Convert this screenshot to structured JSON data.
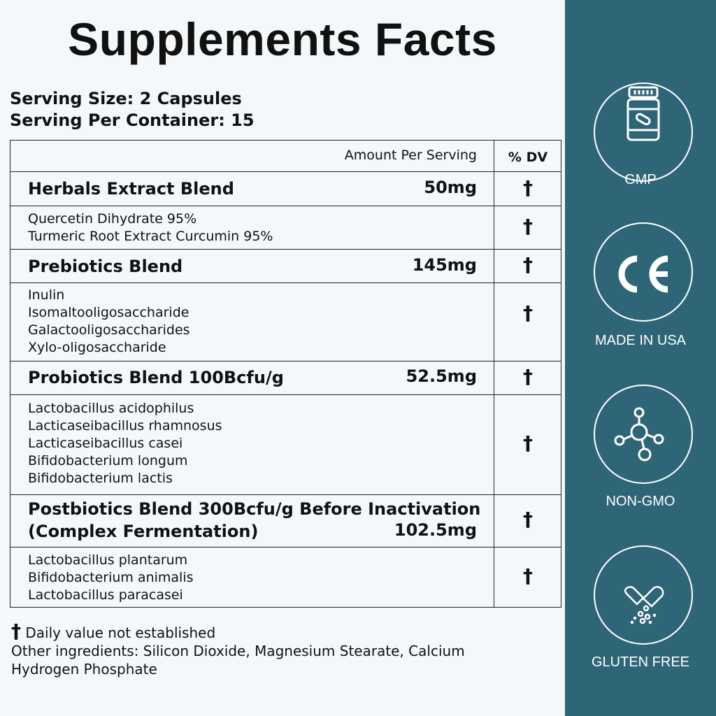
{
  "title": "Supplements Facts",
  "serving_size": "Serving Size: 2 Capsules",
  "servings_per_container": "Serving Per Container: 15",
  "table": {
    "header_amount": "Amount Per Serving",
    "header_dv": "% DV",
    "dagger": "†",
    "blends": [
      {
        "name": "Herbals Extract Blend",
        "amount": "50mg",
        "ingredients": [
          "Quercetin Dihydrate 95%",
          "Turmeric Root Extract Curcumin 95%"
        ]
      },
      {
        "name": "Prebiotics Blend",
        "amount": "145mg",
        "ingredients": [
          "Inulin",
          "Isomaltooligosaccharide",
          "Galactooligosaccharides",
          "Xylo-oligosaccharide"
        ]
      },
      {
        "name": "Probiotics Blend 100Bcfu/g",
        "amount": "52.5mg",
        "ingredients": [
          "Lactobacillus acidophilus",
          "Lacticaseibacillus rhamnosus",
          "Lacticaseibacillus casei",
          "Bifidobacterium longum",
          "Bifidobacterium lactis"
        ]
      },
      {
        "name": "Postbiotics Blend 300Bcfu/g Before Inactivation",
        "name2": "(Complex Fermentation)",
        "amount": "102.5mg",
        "ingredients": [
          "Lactobacillus plantarum",
          "Bifidobacterium animalis",
          "Lactobacillus paracasei"
        ]
      }
    ]
  },
  "footnote": "Daily value not established",
  "other_ingredients": "Other ingredients: Silicon Dioxide, Magnesium Stearate, Calcium Hydrogen Phosphate",
  "badges": [
    {
      "icon": "supplement-bottle-icon",
      "label": "GMP"
    },
    {
      "icon": "ce-mark-icon",
      "label": "MADE IN USA"
    },
    {
      "icon": "molecule-icon",
      "label": "NON-GMO"
    },
    {
      "icon": "open-capsule-icon",
      "label": "GLUTEN FREE"
    }
  ],
  "colors": {
    "panel": "#2e6678",
    "background": "#f4f8fa"
  }
}
